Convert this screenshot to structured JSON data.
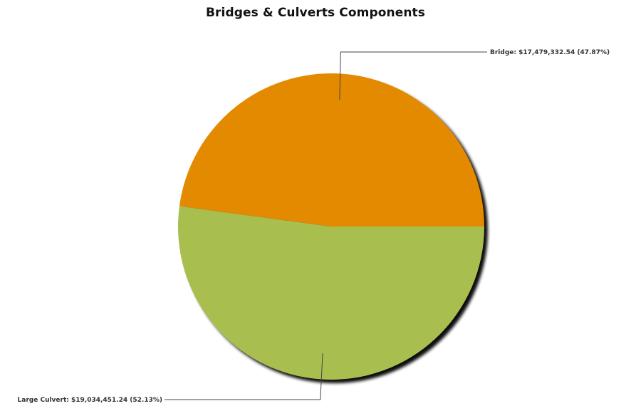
{
  "chart_data": {
    "type": "pie",
    "title": "Bridges & Culverts Components",
    "slices": [
      {
        "name": "Bridge",
        "value": 17479332.54,
        "percent": 47.87,
        "label": "Bridge: $17,479,332.54 (47.87%)",
        "color": "#E38A00"
      },
      {
        "name": "Large Culvert",
        "value": 19034451.24,
        "percent": 52.13,
        "label": "Large Culvert: $19,034,451.24 (52.13%)",
        "color": "#A8BF50"
      }
    ],
    "legend": "none",
    "shadow": true
  }
}
